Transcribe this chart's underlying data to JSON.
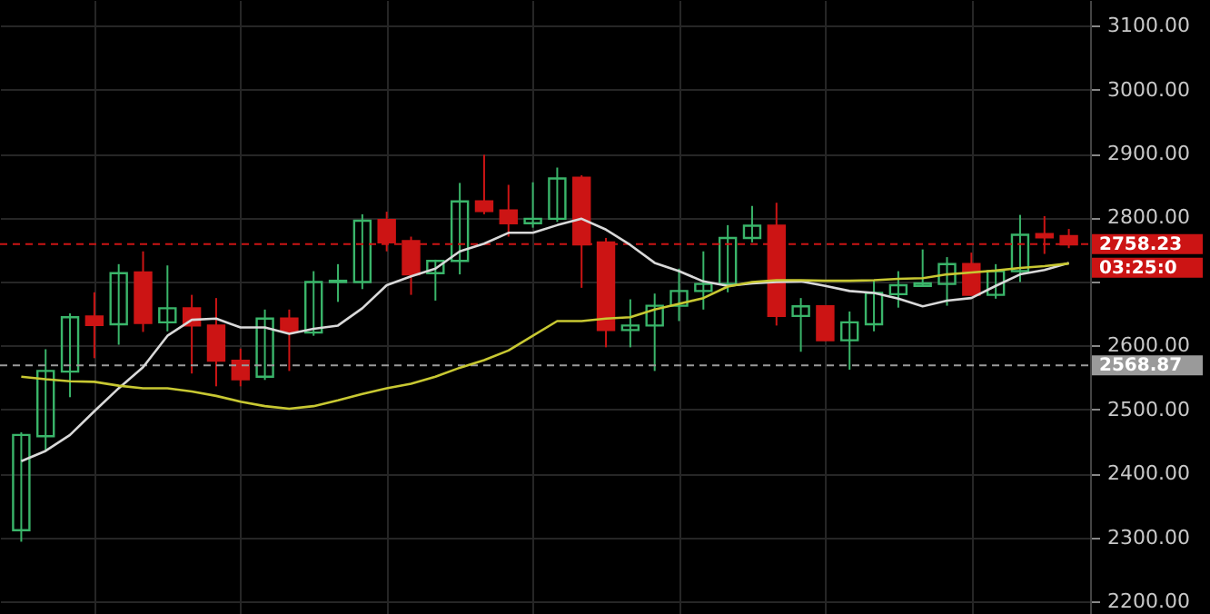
{
  "chart_data": {
    "type": "candlestick",
    "categories": [
      null,
      null,
      null,
      null,
      null,
      null,
      null,
      null,
      null,
      null,
      null,
      null,
      null,
      null,
      null,
      null,
      null,
      null,
      null,
      null,
      null,
      null,
      null,
      null,
      null,
      null,
      null,
      null,
      null,
      null,
      null,
      null,
      null,
      null,
      null,
      null,
      null,
      null,
      null,
      null,
      null,
      null,
      null,
      null
    ],
    "ohlc": [
      [
        2311,
        2464,
        2293,
        2460
      ],
      [
        2458,
        2594,
        2434,
        2560
      ],
      [
        2559,
        2650,
        2519,
        2644
      ],
      [
        2645,
        2683,
        2580,
        2632
      ],
      [
        2633,
        2727,
        2601,
        2713
      ],
      [
        2714,
        2747,
        2621,
        2635
      ],
      [
        2636,
        2725,
        2622,
        2658
      ],
      [
        2658,
        2679,
        2556,
        2631
      ],
      [
        2631,
        2674,
        2536,
        2576
      ],
      [
        2576,
        2595,
        2536,
        2547
      ],
      [
        2551,
        2656,
        2546,
        2642
      ],
      [
        2642,
        2656,
        2560,
        2622
      ],
      [
        2620,
        2716,
        2615,
        2699
      ],
      [
        2699,
        2727,
        2668,
        2701
      ],
      [
        2699,
        2805,
        2688,
        2795
      ],
      [
        2796,
        2809,
        2747,
        2761
      ],
      [
        2763,
        2770,
        2679,
        2711
      ],
      [
        2713,
        2734,
        2670,
        2732
      ],
      [
        2732,
        2854,
        2711,
        2825
      ],
      [
        2825,
        2898,
        2805,
        2810
      ],
      [
        2811,
        2851,
        2770,
        2791
      ],
      [
        2791,
        2855,
        2784,
        2798
      ],
      [
        2798,
        2878,
        2793,
        2861
      ],
      [
        2862,
        2866,
        2690,
        2758
      ],
      [
        2761,
        2768,
        2597,
        2624
      ],
      [
        2624,
        2672,
        2597,
        2631
      ],
      [
        2631,
        2681,
        2560,
        2662
      ],
      [
        2662,
        2720,
        2638,
        2685
      ],
      [
        2685,
        2747,
        2656,
        2696
      ],
      [
        2696,
        2788,
        2683,
        2768
      ],
      [
        2768,
        2818,
        2761,
        2787
      ],
      [
        2787,
        2823,
        2631,
        2646
      ],
      [
        2646,
        2674,
        2590,
        2661
      ],
      [
        2661,
        2662,
        2607,
        2608
      ],
      [
        2608,
        2653,
        2562,
        2636
      ],
      [
        2633,
        2702,
        2622,
        2682
      ],
      [
        2680,
        2716,
        2659,
        2694
      ],
      [
        2693,
        2750,
        2693,
        2697
      ],
      [
        2696,
        2738,
        2662,
        2727
      ],
      [
        2727,
        2745,
        2678,
        2679
      ],
      [
        2679,
        2727,
        2673,
        2716
      ],
      [
        2716,
        2804,
        2699,
        2773
      ],
      [
        2774,
        2802,
        2743,
        2769
      ],
      [
        2771,
        2782,
        2752,
        2758
      ]
    ],
    "colors": [
      "#3ab56a",
      "#3ab56a",
      "#3ab56a",
      "#cc1414",
      "#3ab56a",
      "#cc1414",
      "#3ab56a",
      "#cc1414",
      "#cc1414",
      "#cc1414",
      "#3ab56a",
      "#cc1414",
      "#3ab56a",
      "#3ab56a",
      "#3ab56a",
      "#cc1414",
      "#cc1414",
      "#3ab56a",
      "#3ab56a",
      "#cc1414",
      "#cc1414",
      "#3ab56a",
      "#3ab56a",
      "#cc1414",
      "#cc1414",
      "#3ab56a",
      "#3ab56a",
      "#3ab56a",
      "#3ab56a",
      "#3ab56a",
      "#3ab56a",
      "#cc1414",
      "#3ab56a",
      "#cc1414",
      "#3ab56a",
      "#3ab56a",
      "#3ab56a",
      "#3ab56a",
      "#3ab56a",
      "#cc1414",
      "#3ab56a",
      "#3ab56a",
      "#cc1414",
      "#cc1414"
    ],
    "series": [
      {
        "type": "line",
        "color": "#d9d9d9",
        "values": [
          2419,
          2435,
          2460,
          2497,
          2533,
          2566,
          2615,
          2640,
          2642,
          2628,
          2628,
          2618,
          2626,
          2631,
          2658,
          2694,
          2708,
          2720,
          2747,
          2759,
          2776,
          2776,
          2788,
          2798,
          2781,
          2757,
          2729,
          2716,
          2700,
          2693,
          2697,
          2699,
          2700,
          2693,
          2685,
          2682,
          2673,
          2661,
          2670,
          2674,
          2693,
          2711,
          2718,
          2729
        ]
      },
      {
        "type": "line",
        "color": "#c8c832",
        "values": [
          2551,
          2547,
          2544,
          2543,
          2537,
          2533,
          2533,
          2528,
          2521,
          2512,
          2505,
          2501,
          2505,
          2514,
          2524,
          2533,
          2540,
          2551,
          2565,
          2577,
          2592,
          2615,
          2638,
          2638,
          2642,
          2644,
          2656,
          2665,
          2674,
          2692,
          2699,
          2702,
          2702,
          2701,
          2701,
          2702,
          2704,
          2705,
          2711,
          2714,
          2717,
          2721,
          2724,
          2728
        ]
      }
    ],
    "ylim": [
      2180,
      3140
    ],
    "yticks": [
      {
        "value": 2200,
        "label": "2200.00"
      },
      {
        "value": 2300,
        "label": "2300.00"
      },
      {
        "value": 2400,
        "label": "2400.00"
      },
      {
        "value": 2500,
        "label": "2500.00"
      },
      {
        "value": 2600,
        "label": "2600.00"
      },
      {
        "value": 2700,
        "label": null
      },
      {
        "value": 2800,
        "label": "2800.00"
      },
      {
        "value": 2900,
        "label": "2900.00"
      },
      {
        "value": 3000,
        "label": "3000.00"
      },
      {
        "value": 3100,
        "label": "3100.00"
      }
    ],
    "ref_lines": [
      {
        "axis": "y",
        "value": 2758.23,
        "label": "2758.23",
        "color": "#cc1414",
        "line_style": "dashed"
      },
      {
        "axis": "y",
        "value": 2568.87,
        "label": "2568.87",
        "color": "#9a9a9a",
        "line_style": "dashed"
      }
    ],
    "annotations": [
      "03:25:0"
    ],
    "grid": true
  }
}
